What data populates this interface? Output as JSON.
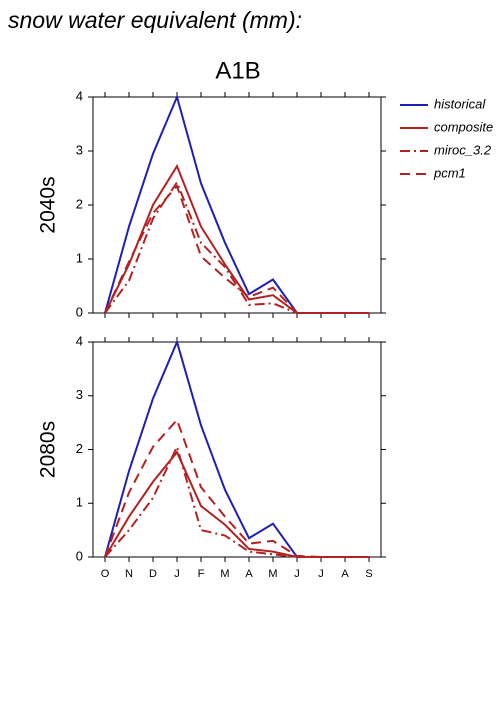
{
  "title": "snow water equivalent (mm):",
  "subtitle": "A1B",
  "chart_data": [
    {
      "type": "line",
      "ylabel": "2040s",
      "ylim": [
        0,
        4
      ],
      "yticks": [
        0,
        1,
        2,
        3,
        4
      ],
      "series": [
        {
          "name": "historical",
          "color": "#1f1fb4",
          "dash": "none",
          "values": [
            0,
            1.6,
            2.95,
            4.0,
            2.4,
            1.3,
            0.35,
            0.62,
            0,
            0,
            0,
            0
          ]
        },
        {
          "name": "composite",
          "color": "#b22222",
          "dash": "none",
          "values": [
            0,
            0.9,
            2.0,
            2.72,
            1.6,
            0.9,
            0.25,
            0.33,
            0,
            0,
            0,
            0
          ]
        },
        {
          "name": "miroc_3.2",
          "color": "#b22222",
          "dash": "10,4,2,4",
          "values": [
            0,
            0.6,
            1.75,
            2.42,
            1.3,
            0.85,
            0.15,
            0.18,
            0,
            0,
            0,
            0
          ]
        },
        {
          "name": "pcm1",
          "color": "#b22222",
          "dash": "10,6",
          "values": [
            0,
            0.95,
            1.85,
            2.35,
            1.05,
            0.65,
            0.3,
            0.47,
            0,
            0,
            0,
            0
          ]
        }
      ]
    },
    {
      "type": "line",
      "ylabel": "2080s",
      "ylim": [
        0,
        4
      ],
      "yticks": [
        0,
        1,
        2,
        3,
        4
      ],
      "categories": [
        "O",
        "N",
        "D",
        "J",
        "F",
        "M",
        "A",
        "M",
        "J",
        "J",
        "A",
        "S"
      ],
      "series": [
        {
          "color": "#1f1fb4",
          "dash": "none",
          "values": [
            0,
            1.6,
            2.95,
            4.0,
            2.45,
            1.25,
            0.35,
            0.62,
            0,
            0,
            0,
            0
          ]
        },
        {
          "color": "#b22222",
          "dash": "none",
          "values": [
            0,
            0.75,
            1.4,
            1.95,
            0.95,
            0.6,
            0.15,
            0.1,
            0,
            0,
            0,
            0
          ]
        },
        {
          "color": "#b22222",
          "dash": "10,4,2,4",
          "values": [
            0,
            0.5,
            1.1,
            2.05,
            0.5,
            0.4,
            0.1,
            0.05,
            0,
            0,
            0,
            0
          ]
        },
        {
          "color": "#b22222",
          "dash": "10,6",
          "values": [
            0,
            1.2,
            2.05,
            2.55,
            1.3,
            0.75,
            0.25,
            0.3,
            0.02,
            0,
            0,
            0
          ]
        }
      ]
    }
  ]
}
